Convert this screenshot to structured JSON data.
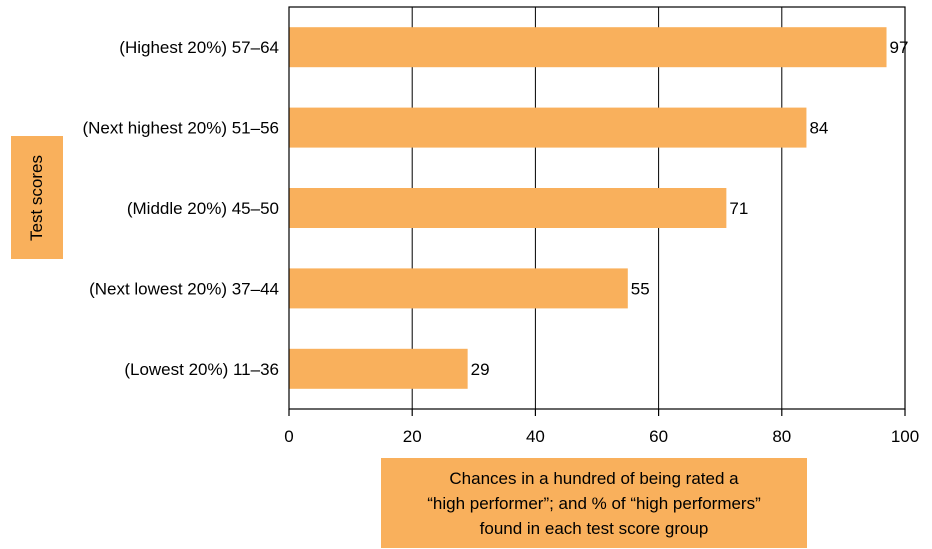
{
  "chart_data": {
    "type": "bar",
    "orientation": "horizontal",
    "categories": [
      "(Highest 20%) 57–64",
      "(Next highest 20%) 51–56",
      "(Middle 20%) 45–50",
      "(Next lowest 20%) 37–44",
      "(Lowest 20%) 11–36"
    ],
    "values": [
      97,
      84,
      71,
      55,
      29
    ],
    "data_labels": [
      "97",
      "84",
      "71",
      "55",
      "29"
    ],
    "xlim": [
      0,
      100
    ],
    "xticks": [
      "0",
      "20",
      "40",
      "60",
      "80",
      "100"
    ],
    "ylabel": "Test scores",
    "xlabel_lines": [
      "Chances in a hundred of being rated a",
      "“high performer”; and % of “high performers”",
      "found in each test score group"
    ],
    "bar_color": "#f9b05c",
    "label_box_color": "#f9b05c",
    "grid": true
  }
}
